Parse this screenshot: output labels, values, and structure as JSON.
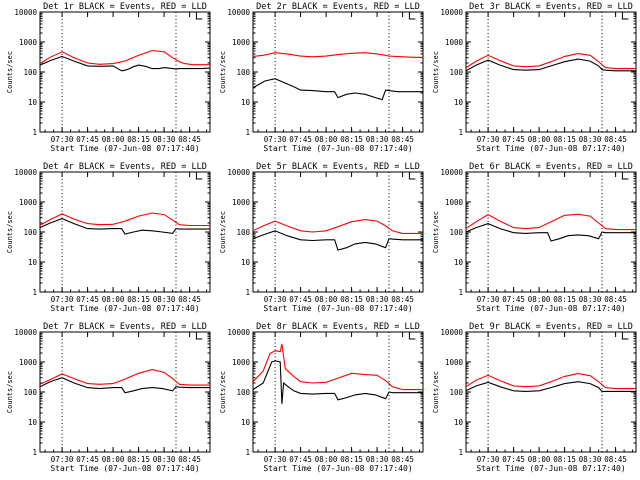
{
  "figure": {
    "xtick_labels": [
      "07:30",
      "07:45",
      "08:00",
      "08:15",
      "08:30",
      "08:45"
    ],
    "xlabel": "Start Time (07-Jun-08 07:17:40)",
    "ylabel": "Counts/sec",
    "ytick_labels": [
      "1",
      "10",
      "100",
      "1000",
      "10000"
    ]
  },
  "chart_data": [
    {
      "type": "line",
      "id": "det1r",
      "title": "Det 1r BLACK = Events, RED = LLD",
      "xlim": [
        0,
        100
      ],
      "ylim": [
        1,
        10000
      ],
      "yscale": "log",
      "xticks": [
        13,
        28,
        43,
        58,
        73,
        88
      ],
      "vlines": [
        13,
        80
      ],
      "series": [
        {
          "name": "Events",
          "color": "#000000",
          "x": [
            0,
            6,
            13,
            20,
            28,
            35,
            43,
            48,
            50,
            52,
            55,
            58,
            62,
            66,
            70,
            73,
            78,
            80,
            82,
            85,
            90,
            95,
            100
          ],
          "y": [
            170,
            240,
            330,
            230,
            160,
            155,
            160,
            110,
            115,
            125,
            150,
            170,
            155,
            130,
            130,
            140,
            130,
            125,
            130,
            130,
            130,
            130,
            135
          ]
        },
        {
          "name": "LLD",
          "color": "#ff0000",
          "x": [
            0,
            6,
            13,
            20,
            28,
            35,
            43,
            50,
            58,
            66,
            73,
            78,
            82,
            85,
            90,
            95,
            100
          ],
          "y": [
            190,
            310,
            470,
            300,
            200,
            180,
            190,
            230,
            360,
            520,
            470,
            300,
            220,
            190,
            175,
            175,
            175
          ]
        }
      ]
    },
    {
      "type": "line",
      "id": "det2r",
      "title": "Det 2r BLACK = Events, RED = LLD",
      "xlim": [
        0,
        100
      ],
      "ylim": [
        1,
        10000
      ],
      "yscale": "log",
      "xticks": [
        13,
        28,
        43,
        58,
        73,
        88
      ],
      "vlines": [
        13,
        80
      ],
      "series": [
        {
          "name": "Events",
          "color": "#000000",
          "x": [
            0,
            7,
            13,
            18,
            24,
            28,
            35,
            43,
            48,
            50,
            55,
            60,
            66,
            72,
            76,
            78,
            80,
            85,
            90,
            95,
            100
          ],
          "y": [
            30,
            50,
            60,
            45,
            32,
            25,
            24,
            22,
            22,
            14,
            18,
            20,
            18,
            14,
            12,
            25,
            24,
            22,
            22,
            22,
            22
          ]
        },
        {
          "name": "LLD",
          "color": "#ff0000",
          "x": [
            0,
            6,
            13,
            20,
            28,
            35,
            43,
            50,
            58,
            66,
            73,
            80,
            88,
            95,
            100
          ],
          "y": [
            330,
            360,
            440,
            400,
            340,
            320,
            340,
            380,
            420,
            440,
            400,
            340,
            320,
            310,
            310
          ]
        }
      ]
    },
    {
      "type": "line",
      "id": "det3r",
      "title": "Det 3r BLACK = Events, RED = LLD",
      "xlim": [
        0,
        100
      ],
      "ylim": [
        1,
        10000
      ],
      "yscale": "log",
      "xticks": [
        13,
        28,
        43,
        58,
        73,
        88
      ],
      "vlines": [
        13,
        80
      ],
      "series": [
        {
          "name": "Events",
          "color": "#000000",
          "x": [
            0,
            6,
            13,
            20,
            28,
            35,
            43,
            50,
            58,
            66,
            73,
            78,
            80,
            82,
            88,
            95,
            100
          ],
          "y": [
            110,
            170,
            250,
            170,
            120,
            115,
            120,
            160,
            220,
            270,
            230,
            160,
            120,
            115,
            110,
            110,
            110
          ]
        },
        {
          "name": "LLD",
          "color": "#ff0000",
          "x": [
            0,
            6,
            13,
            20,
            28,
            35,
            43,
            50,
            58,
            66,
            73,
            78,
            82,
            88,
            95,
            100
          ],
          "y": [
            140,
            230,
            360,
            240,
            160,
            150,
            160,
            220,
            330,
            410,
            360,
            220,
            140,
            130,
            130,
            130
          ]
        }
      ]
    },
    {
      "type": "line",
      "id": "det4r",
      "title": "Det 4r BLACK = Events, RED = LLD",
      "xlim": [
        0,
        100
      ],
      "ylim": [
        1,
        10000
      ],
      "yscale": "log",
      "xticks": [
        13,
        28,
        43,
        58,
        73,
        88
      ],
      "vlines": [
        13,
        80
      ],
      "series": [
        {
          "name": "Events",
          "color": "#000000",
          "x": [
            0,
            6,
            13,
            20,
            28,
            35,
            43,
            48,
            50,
            55,
            60,
            66,
            72,
            78,
            80,
            82,
            88,
            95,
            100
          ],
          "y": [
            140,
            200,
            280,
            190,
            130,
            125,
            130,
            130,
            85,
            100,
            115,
            110,
            100,
            90,
            130,
            125,
            125,
            125,
            125
          ]
        },
        {
          "name": "LLD",
          "color": "#ff0000",
          "x": [
            0,
            6,
            13,
            20,
            28,
            35,
            43,
            50,
            58,
            66,
            73,
            78,
            82,
            88,
            95,
            100
          ],
          "y": [
            170,
            260,
            400,
            270,
            190,
            175,
            180,
            230,
            340,
            430,
            380,
            250,
            175,
            165,
            165,
            165
          ]
        }
      ]
    },
    {
      "type": "line",
      "id": "det5r",
      "title": "Det 5r BLACK = Events, RED = LLD",
      "xlim": [
        0,
        100
      ],
      "ylim": [
        1,
        10000
      ],
      "yscale": "log",
      "xticks": [
        13,
        28,
        43,
        58,
        73,
        88
      ],
      "vlines": [
        13,
        80
      ],
      "series": [
        {
          "name": "Events",
          "color": "#000000",
          "x": [
            0,
            6,
            13,
            20,
            28,
            35,
            43,
            48,
            50,
            55,
            60,
            66,
            72,
            78,
            80,
            82,
            88,
            95,
            100
          ],
          "y": [
            60,
            80,
            110,
            75,
            55,
            52,
            55,
            55,
            25,
            30,
            40,
            45,
            40,
            30,
            60,
            58,
            55,
            55,
            55
          ]
        },
        {
          "name": "LLD",
          "color": "#ff0000",
          "x": [
            0,
            6,
            13,
            20,
            28,
            35,
            43,
            50,
            58,
            66,
            73,
            78,
            82,
            88,
            95,
            100
          ],
          "y": [
            110,
            160,
            230,
            160,
            110,
            100,
            110,
            150,
            220,
            260,
            230,
            160,
            110,
            90,
            90,
            90
          ]
        }
      ]
    },
    {
      "type": "line",
      "id": "det6r",
      "title": "Det 6r BLACK = Events, RED = LLD",
      "xlim": [
        0,
        100
      ],
      "ylim": [
        1,
        10000
      ],
      "yscale": "log",
      "xticks": [
        13,
        28,
        43,
        58,
        73,
        88
      ],
      "vlines": [
        13,
        80
      ],
      "series": [
        {
          "name": "Events",
          "color": "#000000",
          "x": [
            0,
            6,
            13,
            20,
            28,
            35,
            43,
            48,
            50,
            55,
            60,
            66,
            72,
            78,
            80,
            82,
            88,
            95,
            100
          ],
          "y": [
            100,
            140,
            190,
            130,
            95,
            90,
            95,
            95,
            50,
            60,
            75,
            80,
            75,
            60,
            100,
            95,
            95,
            95,
            95
          ]
        },
        {
          "name": "LLD",
          "color": "#ff0000",
          "x": [
            0,
            6,
            13,
            20,
            28,
            35,
            43,
            50,
            58,
            66,
            73,
            78,
            82,
            88,
            95,
            100
          ],
          "y": [
            130,
            220,
            380,
            230,
            140,
            130,
            140,
            220,
            360,
            390,
            340,
            200,
            130,
            120,
            120,
            120
          ]
        }
      ]
    },
    {
      "type": "line",
      "id": "det7r",
      "title": "Det 7r BLACK = Events, RED = LLD",
      "xlim": [
        0,
        100
      ],
      "ylim": [
        1,
        10000
      ],
      "yscale": "log",
      "xticks": [
        13,
        28,
        43,
        58,
        73,
        88
      ],
      "vlines": [
        13,
        80
      ],
      "series": [
        {
          "name": "Events",
          "color": "#000000",
          "x": [
            0,
            6,
            13,
            20,
            28,
            35,
            43,
            48,
            50,
            55,
            60,
            66,
            72,
            78,
            80,
            82,
            88,
            95,
            100
          ],
          "y": [
            150,
            220,
            300,
            200,
            140,
            130,
            140,
            140,
            95,
            110,
            130,
            140,
            130,
            110,
            150,
            145,
            140,
            140,
            140
          ]
        },
        {
          "name": "LLD",
          "color": "#ff0000",
          "x": [
            0,
            6,
            13,
            20,
            28,
            35,
            43,
            50,
            58,
            66,
            73,
            78,
            82,
            88,
            95,
            100
          ],
          "y": [
            180,
            260,
            400,
            280,
            190,
            180,
            190,
            270,
            420,
            560,
            450,
            280,
            180,
            170,
            170,
            170
          ]
        }
      ]
    },
    {
      "type": "line",
      "id": "det8r",
      "title": "Det 8r BLACK = Events, RED = LLD",
      "xlim": [
        0,
        100
      ],
      "ylim": [
        1,
        10000
      ],
      "yscale": "log",
      "xticks": [
        13,
        28,
        43,
        58,
        73,
        88
      ],
      "vlines": [
        13,
        80
      ],
      "series": [
        {
          "name": "Events",
          "color": "#000000",
          "x": [
            0,
            6,
            11,
            13,
            16,
            17,
            18,
            19,
            20,
            24,
            28,
            35,
            43,
            48,
            50,
            55,
            60,
            66,
            72,
            78,
            80,
            82,
            88,
            95,
            100
          ],
          "y": [
            120,
            200,
            1000,
            1100,
            1000,
            40,
            200,
            180,
            160,
            110,
            90,
            85,
            90,
            90,
            55,
            65,
            80,
            90,
            80,
            60,
            100,
            95,
            95,
            95,
            95
          ]
        },
        {
          "name": "LLD",
          "color": "#ff0000",
          "x": [
            0,
            6,
            10,
            13,
            16,
            17,
            19,
            24,
            28,
            35,
            43,
            50,
            58,
            66,
            73,
            78,
            82,
            88,
            95,
            100
          ],
          "y": [
            220,
            500,
            1900,
            2400,
            2200,
            4000,
            600,
            330,
            220,
            200,
            210,
            290,
            420,
            380,
            360,
            240,
            150,
            120,
            120,
            120
          ]
        }
      ]
    },
    {
      "type": "line",
      "id": "det9r",
      "title": "Det 9r BLACK = Events, RED = LLD",
      "xlim": [
        0,
        100
      ],
      "ylim": [
        1,
        10000
      ],
      "yscale": "log",
      "xticks": [
        13,
        28,
        43,
        58,
        73,
        88
      ],
      "vlines": [
        13,
        80
      ],
      "series": [
        {
          "name": "Events",
          "color": "#000000",
          "x": [
            0,
            6,
            13,
            20,
            28,
            35,
            43,
            50,
            58,
            66,
            73,
            78,
            80,
            82,
            88,
            95,
            100
          ],
          "y": [
            110,
            160,
            210,
            150,
            110,
            105,
            110,
            140,
            190,
            220,
            190,
            140,
            105,
            105,
            105,
            105,
            105
          ]
        },
        {
          "name": "LLD",
          "color": "#ff0000",
          "x": [
            0,
            6,
            13,
            20,
            28,
            35,
            43,
            50,
            58,
            66,
            73,
            78,
            82,
            88,
            95,
            100
          ],
          "y": [
            150,
            250,
            360,
            240,
            160,
            150,
            160,
            220,
            330,
            410,
            350,
            220,
            140,
            130,
            130,
            130
          ]
        }
      ]
    }
  ]
}
